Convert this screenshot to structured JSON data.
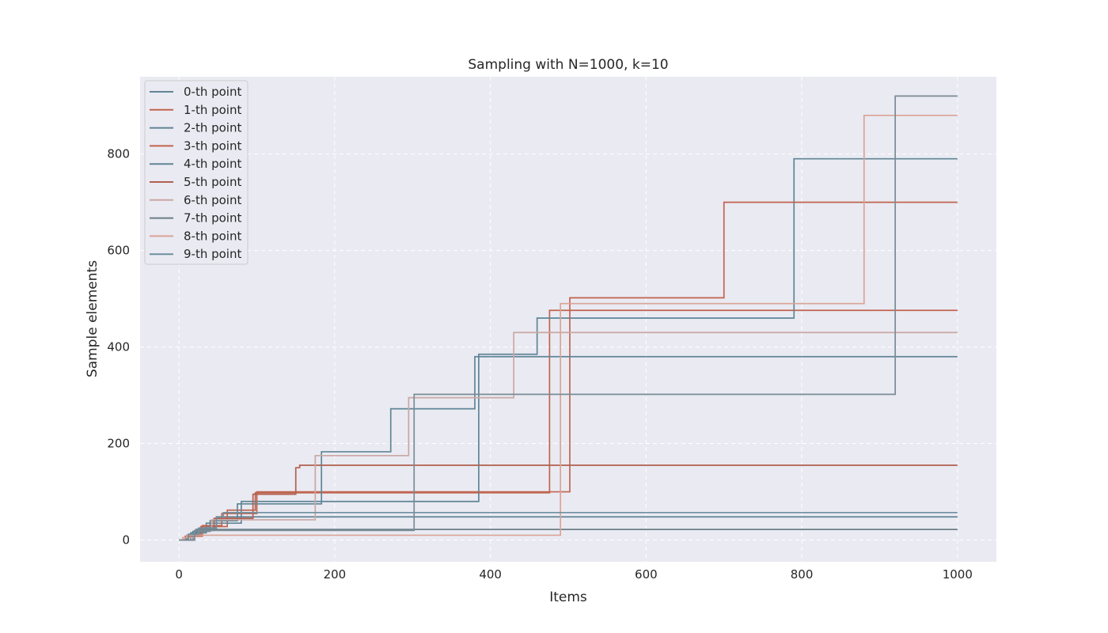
{
  "chart_data": {
    "type": "line",
    "title": "Sampling with N=1000, k=10",
    "xlabel": "Items",
    "ylabel": "Sample elements",
    "xlim": [
      -50,
      1050
    ],
    "ylim": [
      -45,
      960
    ],
    "xticks": [
      0,
      200,
      400,
      600,
      800,
      1000
    ],
    "yticks": [
      0,
      200,
      400,
      600,
      800
    ],
    "grid": true,
    "step_style": "post",
    "legend": "upper-left",
    "background": "#eaeaf2",
    "series": [
      {
        "name": "0-th point",
        "color": "#5f8596",
        "x": [
          0,
          10,
          22,
          48,
          1000
        ],
        "y": [
          0,
          10,
          22,
          48,
          48
        ]
      },
      {
        "name": "1-th point",
        "color": "#c0644f",
        "x": [
          0,
          12,
          28,
          62,
          98,
          476,
          1000
        ],
        "y": [
          0,
          12,
          28,
          62,
          98,
          476,
          476
        ]
      },
      {
        "name": "2-th point",
        "color": "#5f8596",
        "x": [
          0,
          15,
          35,
          80,
          385,
          460,
          790,
          1000
        ],
        "y": [
          0,
          15,
          35,
          80,
          385,
          460,
          790,
          790
        ]
      },
      {
        "name": "3-th point",
        "color": "#c0644f",
        "x": [
          0,
          8,
          30,
          55,
          100,
          502,
          700,
          1000
        ],
        "y": [
          0,
          8,
          30,
          55,
          100,
          502,
          700,
          700
        ]
      },
      {
        "name": "4-th point",
        "color": "#5f8596",
        "x": [
          0,
          18,
          40,
          75,
          183,
          272,
          380,
          1000
        ],
        "y": [
          0,
          18,
          40,
          75,
          183,
          272,
          380,
          380
        ]
      },
      {
        "name": "5-th point",
        "color": "#b0604f",
        "x": [
          0,
          20,
          45,
          95,
          150,
          155,
          1000
        ],
        "y": [
          0,
          20,
          45,
          95,
          150,
          155,
          155
        ]
      },
      {
        "name": "6-th point",
        "color": "#c9a8a4",
        "x": [
          0,
          5,
          20,
          42,
          175,
          295,
          430,
          1000
        ],
        "y": [
          0,
          5,
          20,
          42,
          175,
          295,
          430,
          430
        ]
      },
      {
        "name": "7-th point",
        "color": "#6b7d86",
        "x": [
          0,
          10,
          22,
          1000
        ],
        "y": [
          0,
          10,
          22,
          22
        ]
      },
      {
        "name": "8-th point",
        "color": "#d9a496",
        "x": [
          0,
          5,
          10,
          490,
          880,
          1000
        ],
        "y": [
          0,
          5,
          10,
          490,
          880,
          880
        ]
      },
      {
        "name": "9-th point",
        "color": "#6d8fa0",
        "x": [
          0,
          12,
          25,
          48,
          57,
          1000
        ],
        "y": [
          0,
          12,
          25,
          48,
          57,
          57
        ]
      },
      {
        "name": "",
        "color": "#7a8c95",
        "x": [
          0,
          20,
          302,
          920,
          1000
        ],
        "y": [
          0,
          20,
          302,
          920,
          920
        ]
      }
    ]
  }
}
